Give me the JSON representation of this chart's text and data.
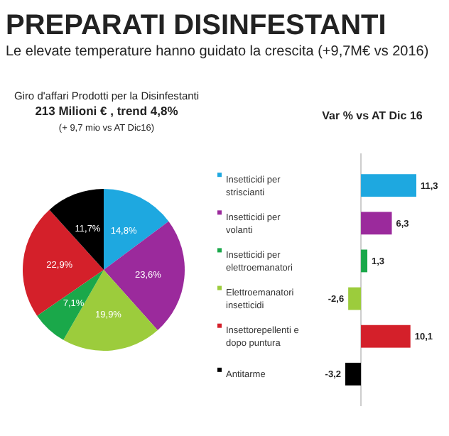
{
  "chart_data": [
    {
      "type": "pie",
      "title": "PREPARATI DISINFESTANTI",
      "subtitle": "Le elevate temperature hanno guidato la crescita (+9,7M€ vs 2016)",
      "annotations": [
        "Giro d'affari Prodotti per la Disinfestanti",
        "213 Milioni  € , trend 4,8%",
        "(+ 9,7 mio vs AT Dic16)"
      ],
      "categories": [
        null,
        null,
        null,
        null,
        null,
        null
      ],
      "values": [
        14.8,
        23.6,
        19.9,
        7.1,
        22.9,
        11.7
      ],
      "value_labels": [
        "14,8%",
        "23,6%",
        "19,9%",
        "7,1%",
        "22,9%",
        "11,7%"
      ],
      "colors": [
        "#1ea8e0",
        "#9b2a9c",
        "#9ccc3c",
        "#1aa84a",
        "#d4202a",
        "#000000"
      ]
    },
    {
      "type": "bar",
      "orientation": "horizontal",
      "title": "Var % vs AT Dic 16",
      "categories": [
        "Insetticidi per striscianti",
        "Insetticidi per volanti",
        "Insetticidi per elettroemanatori",
        "Elettroemanatori insetticidi",
        "Insettorepellenti e dopo puntura",
        "Antitarme"
      ],
      "values": [
        11.3,
        6.3,
        1.3,
        -2.6,
        10.1,
        -3.2
      ],
      "value_labels": [
        "11,3",
        "6,3",
        "1,3",
        "-2,6",
        "10,1",
        "-3,2"
      ],
      "colors": [
        "#1ea8e0",
        "#9b2a9c",
        "#1aa84a",
        "#9ccc3c",
        "#d4202a",
        "#000000"
      ]
    }
  ]
}
